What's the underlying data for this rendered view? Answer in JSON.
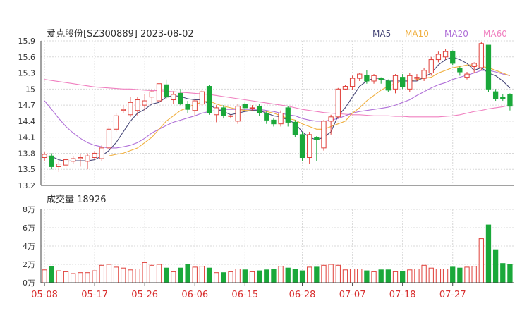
{
  "header": {
    "title": "爱克股份[SZ300889] 2023-08-02",
    "legend": [
      {
        "label": "MA5",
        "color": "#4a4a7a"
      },
      {
        "label": "MA10",
        "color": "#f0b040"
      },
      {
        "label": "MA20",
        "color": "#b070d8"
      },
      {
        "label": "MA60",
        "color": "#f080c0"
      }
    ]
  },
  "colors": {
    "up": "#e0403a",
    "down": "#1aa83a",
    "grid": "#d8d8d8",
    "axis": "#444444",
    "date": "#d83030"
  },
  "chart_data": [
    {
      "type": "candlestick",
      "title": "爱克股份[SZ300889] 2023-08-02",
      "ylim": [
        13.2,
        15.9
      ],
      "yticks": [
        "15.9",
        "15.6",
        "15.3",
        "15",
        "14.7",
        "14.4",
        "14.1",
        "13.8",
        "13.5",
        "13.2"
      ],
      "xticks": [
        "05-08",
        "05-17",
        "05-26",
        "06-06",
        "06-15",
        "06-28",
        "07-07",
        "07-18",
        "07-27"
      ],
      "xtick_index": [
        0,
        7,
        14,
        21,
        28,
        36,
        43,
        50,
        57
      ],
      "candles": [
        [
          13.72,
          13.78,
          13.65,
          13.82
        ],
        [
          13.75,
          13.55,
          13.5,
          13.8
        ],
        [
          13.55,
          13.6,
          13.45,
          13.68
        ],
        [
          13.58,
          13.68,
          13.5,
          13.72
        ],
        [
          13.65,
          13.7,
          13.6,
          13.75
        ],
        [
          13.7,
          13.72,
          13.55,
          13.78
        ],
        [
          13.65,
          13.75,
          13.5,
          13.8
        ],
        [
          13.72,
          13.8,
          13.68,
          13.84
        ],
        [
          13.7,
          13.9,
          13.65,
          13.95
        ],
        [
          13.9,
          14.25,
          13.88,
          14.3
        ],
        [
          14.25,
          14.5,
          14.2,
          14.55
        ],
        [
          14.6,
          14.62,
          14.55,
          14.7
        ],
        [
          14.52,
          14.75,
          14.48,
          14.85
        ],
        [
          14.6,
          14.8,
          14.5,
          14.85
        ],
        [
          14.7,
          14.78,
          14.6,
          14.9
        ],
        [
          14.85,
          14.95,
          14.72,
          15.0
        ],
        [
          14.78,
          15.1,
          14.7,
          15.12
        ],
        [
          15.08,
          14.85,
          14.82,
          15.18
        ],
        [
          14.8,
          14.9,
          14.72,
          14.96
        ],
        [
          14.92,
          14.72,
          14.7,
          15.0
        ],
        [
          14.72,
          14.62,
          14.55,
          14.78
        ],
        [
          14.6,
          14.78,
          14.5,
          14.82
        ],
        [
          14.72,
          14.95,
          14.68,
          15.0
        ],
        [
          15.05,
          14.55,
          14.52,
          15.08
        ],
        [
          14.52,
          14.65,
          14.38,
          14.7
        ],
        [
          14.65,
          14.5,
          14.45,
          14.7
        ],
        [
          14.5,
          14.5,
          14.45,
          14.52
        ],
        [
          14.4,
          14.68,
          14.35,
          14.72
        ],
        [
          14.72,
          14.65,
          14.6,
          14.75
        ],
        [
          14.65,
          14.65,
          14.6,
          14.7
        ],
        [
          14.68,
          14.55,
          14.5,
          14.72
        ],
        [
          14.55,
          14.42,
          14.35,
          14.58
        ],
        [
          14.42,
          14.35,
          14.3,
          14.45
        ],
        [
          14.35,
          14.55,
          14.3,
          14.6
        ],
        [
          14.65,
          14.38,
          14.3,
          14.68
        ],
        [
          14.38,
          14.15,
          14.1,
          14.42
        ],
        [
          14.15,
          13.72,
          13.65,
          14.2
        ],
        [
          13.72,
          14.15,
          13.6,
          14.2
        ],
        [
          14.1,
          14.05,
          13.65,
          14.12
        ],
        [
          13.9,
          14.4,
          13.85,
          14.42
        ],
        [
          14.4,
          14.48,
          14.15,
          14.52
        ],
        [
          14.48,
          15.0,
          14.45,
          15.02
        ],
        [
          15.0,
          15.05,
          14.98,
          15.08
        ],
        [
          15.05,
          15.2,
          14.98,
          15.25
        ],
        [
          15.2,
          15.28,
          15.15,
          15.3
        ],
        [
          15.25,
          15.15,
          15.1,
          15.35
        ],
        [
          15.15,
          15.25,
          15.1,
          15.28
        ],
        [
          15.2,
          15.18,
          15.1,
          15.22
        ],
        [
          15.15,
          14.98,
          14.95,
          15.18
        ],
        [
          15.0,
          15.25,
          14.92,
          15.28
        ],
        [
          15.22,
          15.05,
          15.0,
          15.28
        ],
        [
          15.0,
          15.25,
          14.95,
          15.3
        ],
        [
          15.2,
          15.22,
          15.15,
          15.28
        ],
        [
          15.2,
          15.35,
          15.15,
          15.4
        ],
        [
          15.3,
          15.55,
          15.25,
          15.6
        ],
        [
          15.55,
          15.65,
          15.5,
          15.7
        ],
        [
          15.6,
          15.7,
          15.55,
          15.75
        ],
        [
          15.7,
          15.48,
          15.45,
          15.72
        ],
        [
          15.38,
          15.32,
          15.25,
          15.42
        ],
        [
          15.22,
          15.28,
          15.18,
          15.32
        ],
        [
          15.42,
          15.48,
          15.3,
          15.5
        ],
        [
          15.4,
          15.85,
          15.35,
          15.88
        ],
        [
          15.82,
          15.0,
          14.95,
          15.82
        ],
        [
          14.95,
          14.82,
          14.78,
          15.0
        ],
        [
          14.85,
          14.82,
          14.78,
          14.9
        ],
        [
          14.9,
          14.68,
          14.6,
          14.92
        ]
      ],
      "ma5": [
        13.75,
        13.74,
        13.68,
        13.65,
        13.66,
        13.66,
        13.66,
        13.68,
        13.75,
        13.85,
        14.0,
        14.2,
        14.4,
        14.55,
        14.62,
        14.72,
        14.75,
        14.85,
        14.88,
        14.86,
        14.82,
        14.8,
        14.8,
        14.72,
        14.62,
        14.58,
        14.52,
        14.55,
        14.58,
        14.6,
        14.6,
        14.55,
        14.5,
        14.48,
        14.42,
        14.36,
        14.2,
        14.1,
        14.05,
        14.1,
        14.2,
        14.5,
        14.65,
        14.85,
        15.05,
        15.15,
        15.2,
        15.2,
        15.15,
        15.15,
        15.15,
        15.15,
        15.15,
        15.22,
        15.3,
        15.45,
        15.55,
        15.6,
        15.55,
        15.48,
        15.35,
        15.4,
        15.3,
        15.25,
        15.15,
        15.02
      ],
      "ma10": [
        null,
        null,
        null,
        null,
        null,
        null,
        null,
        null,
        null,
        13.75,
        13.78,
        13.8,
        13.85,
        13.9,
        14.0,
        14.1,
        14.25,
        14.4,
        14.5,
        14.6,
        14.65,
        14.72,
        14.75,
        14.78,
        14.72,
        14.68,
        14.65,
        14.62,
        14.6,
        14.6,
        14.6,
        14.58,
        14.55,
        14.5,
        14.45,
        14.42,
        14.35,
        14.3,
        14.25,
        14.25,
        14.3,
        14.35,
        14.4,
        14.55,
        14.65,
        14.78,
        14.88,
        14.98,
        15.05,
        15.1,
        15.15,
        15.15,
        15.18,
        15.2,
        15.22,
        15.3,
        15.35,
        15.4,
        15.42,
        15.45,
        15.45,
        15.42,
        15.4,
        15.35,
        15.3,
        15.25
      ],
      "ma20": [
        14.78,
        14.62,
        14.45,
        14.3,
        14.18,
        14.08,
        14.0,
        13.95,
        13.92,
        13.9,
        13.9,
        13.92,
        13.95,
        14.0,
        14.08,
        14.18,
        14.25,
        14.32,
        14.38,
        14.42,
        14.46,
        14.5,
        14.55,
        14.58,
        14.6,
        14.62,
        14.62,
        14.62,
        14.62,
        14.62,
        14.62,
        14.6,
        14.58,
        14.55,
        14.52,
        14.5,
        14.45,
        14.42,
        14.4,
        14.4,
        14.42,
        14.45,
        14.5,
        14.55,
        14.58,
        14.6,
        14.62,
        14.64,
        14.66,
        14.7,
        14.75,
        14.8,
        14.88,
        14.95,
        15.02,
        15.08,
        15.12,
        15.18,
        15.22,
        15.26,
        15.3,
        15.35,
        15.35,
        15.32,
        15.28,
        15.25
      ],
      "ma60": [
        15.18,
        15.16,
        15.14,
        15.12,
        15.1,
        15.08,
        15.06,
        15.04,
        15.03,
        15.02,
        15.01,
        15.0,
        15.0,
        14.99,
        14.98,
        14.97,
        14.97,
        14.96,
        14.95,
        14.94,
        14.93,
        14.92,
        14.91,
        14.9,
        14.88,
        14.86,
        14.84,
        14.82,
        14.8,
        14.78,
        14.76,
        14.74,
        14.72,
        14.7,
        14.68,
        14.65,
        14.62,
        14.6,
        14.58,
        14.56,
        14.55,
        14.54,
        14.53,
        14.52,
        14.52,
        14.51,
        14.5,
        14.5,
        14.5,
        14.49,
        14.49,
        14.48,
        14.48,
        14.48,
        14.48,
        14.48,
        14.49,
        14.5,
        14.52,
        14.55,
        14.58,
        14.6,
        14.63,
        14.65,
        14.67,
        14.7
      ]
    },
    {
      "type": "bar",
      "title": "成交量 18926",
      "unit": "万",
      "ylim": [
        0,
        8
      ],
      "yticks": [
        "8万",
        "6万",
        "4万",
        "2万",
        "0万"
      ],
      "values": [
        1.4,
        1.8,
        1.3,
        1.2,
        1.0,
        1.1,
        1.1,
        1.3,
        1.9,
        2.0,
        1.7,
        1.6,
        1.4,
        1.5,
        2.2,
        1.9,
        2.0,
        1.6,
        1.2,
        1.6,
        2.0,
        1.7,
        1.8,
        1.6,
        1.1,
        1.1,
        1.2,
        1.5,
        1.4,
        1.2,
        1.3,
        1.4,
        1.5,
        1.8,
        1.6,
        1.5,
        1.3,
        1.7,
        1.7,
        1.9,
        2.0,
        1.9,
        1.4,
        1.5,
        1.5,
        1.3,
        1.2,
        1.4,
        1.4,
        1.2,
        1.2,
        1.4,
        1.5,
        1.9,
        1.6,
        1.5,
        1.5,
        1.7,
        1.6,
        1.7,
        1.8,
        4.8,
        6.3,
        3.6,
        2.1,
        2.0
      ]
    }
  ]
}
